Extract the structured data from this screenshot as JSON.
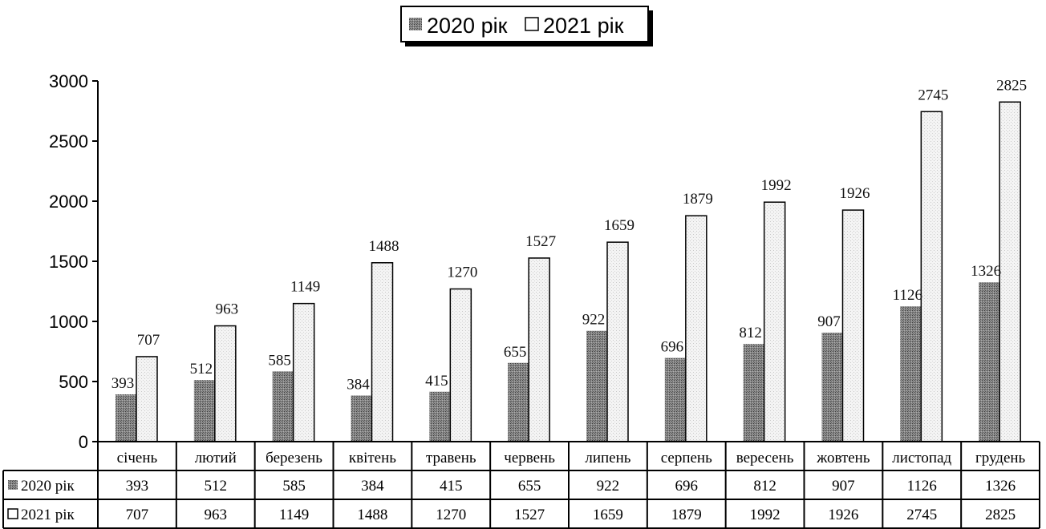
{
  "chart_data": {
    "type": "bar",
    "legend_position": "top",
    "grid": false,
    "ylim": [
      0,
      3000
    ],
    "y_ticks": [
      0,
      500,
      1000,
      1500,
      2000,
      2500,
      3000
    ],
    "categories": [
      "січень",
      "лютий",
      "березень",
      "квітень",
      "травень",
      "червень",
      "липень",
      "серпень",
      "вересень",
      "жовтень",
      "листопад",
      "грудень"
    ],
    "series": [
      {
        "name": "2020 рік",
        "pattern": "dark-dotted",
        "values": [
          393,
          512,
          585,
          384,
          415,
          655,
          922,
          696,
          812,
          907,
          1126,
          1326
        ]
      },
      {
        "name": "2021 рік",
        "pattern": "light-dotted",
        "values": [
          707,
          963,
          1149,
          1488,
          1270,
          1527,
          1659,
          1879,
          1992,
          1926,
          2745,
          2825
        ]
      }
    ],
    "data_table": true
  }
}
